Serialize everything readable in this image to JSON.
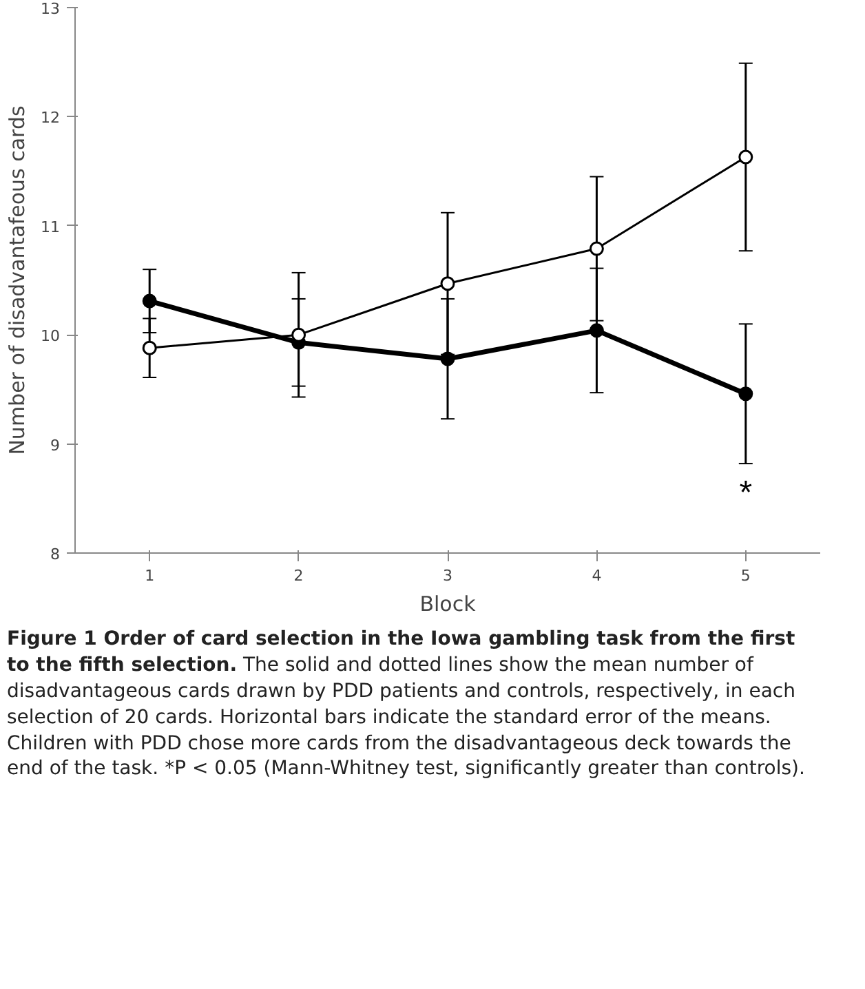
{
  "chart_data": {
    "type": "line",
    "title": "Figure 1 Order of card selection in the Iowa gambling task from the first to the fifth selection.",
    "xlabel": "Block",
    "ylabel": "Number of disadvantafeous cards",
    "categories": [
      "1",
      "2",
      "3",
      "4",
      "5"
    ],
    "series": [
      {
        "color": "#000000",
        "values": [
          10.31,
          9.93,
          9.78,
          10.04,
          9.46
        ],
        "errors": [
          0.29,
          0.4,
          0.55,
          0.57,
          0.64
        ]
      },
      {
        "color": "#000000",
        "values": [
          9.88,
          10.0,
          10.47,
          10.79,
          11.63
        ],
        "errors": [
          0.27,
          0.57,
          0.65,
          0.66,
          0.86
        ]
      }
    ],
    "ylim": [
      8,
      13
    ],
    "yticks": [
      8,
      9,
      10,
      11,
      12,
      13
    ],
    "grid": false,
    "marker": "circle",
    "line_style": "solid",
    "annotations": [
      {
        "text": "*",
        "x": "5",
        "y": 9.46
      },
      "The solid and dotted lines show the mean number of disadvantageous cards drawn by PDD patients and controls, respectively, in each selection of 20 cards. Horizontal bars indicate the standard error of the means. Children with PDD chose more cards from the disadvantageous deck towards the end of the task. *P < 0.05 (Mann-Whitney test, significantly greater than controls)."
    ]
  }
}
